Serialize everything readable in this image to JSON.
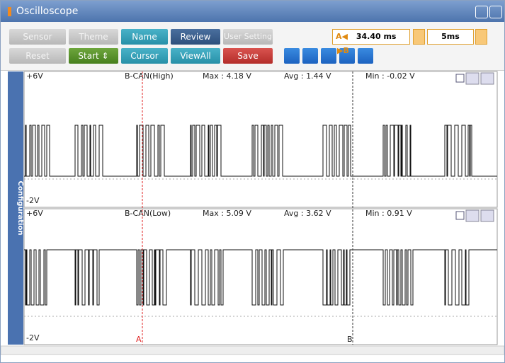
{
  "window": {
    "title": "Oscilloscope"
  },
  "toolbar": {
    "row1": [
      "Sensor",
      "Theme",
      "Name",
      "Review",
      "User Setting"
    ],
    "row2": [
      "Reset",
      "Start ⇕",
      "Cursor",
      "ViewAll",
      "Save"
    ],
    "cursor_readout": {
      "a_label": "A◀",
      "value": "34.40 ms",
      "b_label": "▶B"
    },
    "time_div": "5ms"
  },
  "side_tab": "Configuration",
  "channels": [
    {
      "ymax": "+6V",
      "ymin": "-2V",
      "name": "B-CAN(High)",
      "max": "Max : 4.18 V",
      "avg": "Avg : 1.44 V",
      "min": "Min : -0.02 V"
    },
    {
      "ymax": "+6V",
      "ymin": "-2V",
      "name": "B-CAN(Low)",
      "max": "Max : 5.09 V",
      "avg": "Avg : 3.62 V",
      "min": "Min : 0.91 V"
    }
  ],
  "cursors": {
    "a": "A",
    "b": "B"
  }
}
